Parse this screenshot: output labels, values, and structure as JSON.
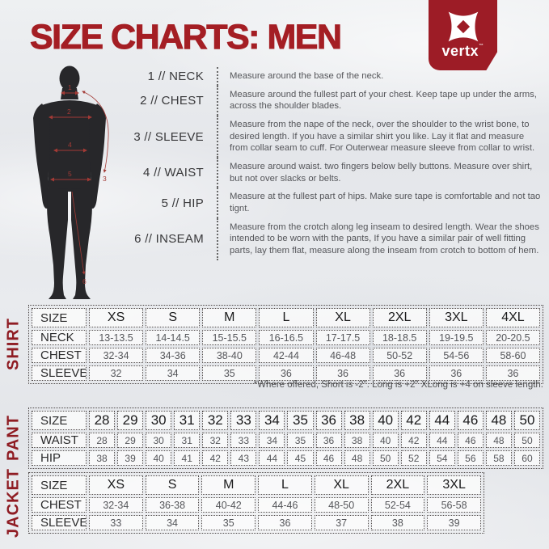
{
  "page": {
    "title": "SIZE CHARTS: MEN"
  },
  "brand": {
    "name": "vertx",
    "trademark": "™"
  },
  "figure": {
    "markers": [
      "1",
      "2",
      "3",
      "4",
      "5",
      "6"
    ]
  },
  "measurements": [
    {
      "label": "1 // NECK",
      "desc": "Measure around the base of the neck."
    },
    {
      "label": "2 // CHEST",
      "desc": "Measure around the fullest part of your chest. Keep tape up under the arms, across the shoulder blades."
    },
    {
      "label": "3 // SLEEVE",
      "desc": "Measure from the nape of the neck, over the shoulder to the wrist bone, to desired length. If you have a similar shirt you like. Lay it flat and measure from collar seam to cuff. For Outerwear measure sleeve from collar to wrist."
    },
    {
      "label": "4 // WAIST",
      "desc": "Measure around waist. two fingers below belly buttons. Measure over shirt, but not over slacks or belts."
    },
    {
      "label": "5 // HIP",
      "desc": "Measure at the fullest part of hips. Make sure tape is comfortable and not tao tignt."
    },
    {
      "label": "6 // INSEAM",
      "desc": "Measure from the crotch along leg inseam to desired length. Wear the shoes intended to be worn with the pants, If you have a similar pair of well fitting parts, lay them flat, measure along the inseam from crotch to bottom of hem."
    }
  ],
  "shirt_note": "*Where offered, Short is -2\". Long is +2\" XLong is +4 on sleeve length.",
  "tables": [
    {
      "name": "SHIRT",
      "rows": [
        {
          "label": "SIZE",
          "values": [
            "XS",
            "S",
            "M",
            "L",
            "XL",
            "2XL",
            "3XL",
            "4XL"
          ]
        },
        {
          "label": "NECK",
          "values": [
            "13-13.5",
            "14-14.5",
            "15-15.5",
            "16-16.5",
            "17-17.5",
            "18-18.5",
            "19-19.5",
            "20-20.5"
          ]
        },
        {
          "label": "CHEST",
          "values": [
            "32-34",
            "34-36",
            "38-40",
            "42-44",
            "46-48",
            "50-52",
            "54-56",
            "58-60"
          ]
        },
        {
          "label": "SLEEVE",
          "values": [
            "32",
            "34",
            "35",
            "36",
            "36",
            "36",
            "36",
            "36"
          ]
        }
      ]
    },
    {
      "name": "PANT",
      "rows": [
        {
          "label": "SIZE",
          "values": [
            "28",
            "29",
            "30",
            "31",
            "32",
            "33",
            "34",
            "35",
            "36",
            "38",
            "40",
            "42",
            "44",
            "46",
            "48",
            "50"
          ]
        },
        {
          "label": "WAIST",
          "values": [
            "28",
            "29",
            "30",
            "31",
            "32",
            "33",
            "34",
            "35",
            "36",
            "38",
            "40",
            "42",
            "44",
            "46",
            "48",
            "50"
          ]
        },
        {
          "label": "HIP",
          "values": [
            "38",
            "39",
            "40",
            "41",
            "42",
            "43",
            "44",
            "45",
            "46",
            "48",
            "50",
            "52",
            "54",
            "56",
            "58",
            "60"
          ]
        }
      ]
    },
    {
      "name": "JACKET",
      "rows": [
        {
          "label": "SIZE",
          "values": [
            "XS",
            "S",
            "M",
            "L",
            "XL",
            "2XL",
            "3XL"
          ]
        },
        {
          "label": "CHEST",
          "values": [
            "32-34",
            "36-38",
            "40-42",
            "44-46",
            "48-50",
            "52-54",
            "56-58"
          ]
        },
        {
          "label": "SLEEVE",
          "values": [
            "33",
            "34",
            "35",
            "36",
            "37",
            "38",
            "39"
          ]
        }
      ]
    }
  ],
  "colors": {
    "accent_red": "#a41e24",
    "badge_red": "#9d1c26",
    "table_label_red": "#8f1c23"
  }
}
